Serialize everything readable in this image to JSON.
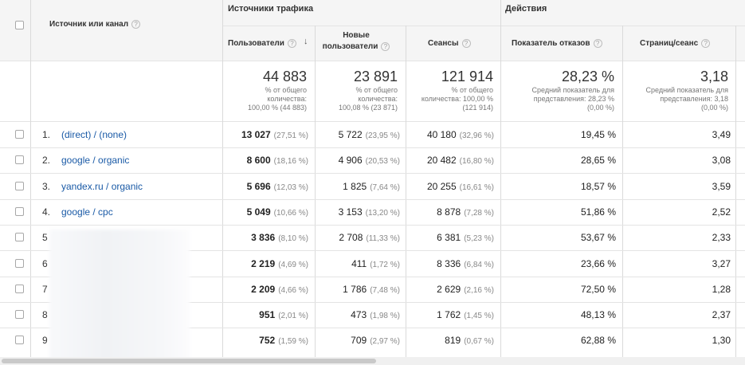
{
  "header": {
    "source_col": "Источник или канал",
    "group_traffic": "Источники трафика",
    "group_actions": "Действия",
    "help_glyph": "?",
    "sort_glyph": "↓",
    "columns": [
      {
        "label1": "Пользователи",
        "label2": ""
      },
      {
        "label1": "Новые",
        "label2": "пользователи"
      },
      {
        "label1": "Сеансы",
        "label2": ""
      },
      {
        "label1": "Показатель отказов",
        "label2": ""
      },
      {
        "label1": "Страниц/сеанс",
        "label2": ""
      }
    ]
  },
  "totals": [
    {
      "value": "44 883",
      "l1": "% от общего",
      "l2": "количества:",
      "l3": "100,00 % (44 883)"
    },
    {
      "value": "23 891",
      "l1": "% от общего",
      "l2": "количества:",
      "l3": "100,08 % (23 871)"
    },
    {
      "value": "121 914",
      "l1": "% от общего",
      "l2": "количества: 100,00 %",
      "l3": "(121 914)"
    },
    {
      "value": "28,23 %",
      "l1": "Средний показатель для",
      "l2": "представления: 28,23 %",
      "l3": "(0,00 %)"
    },
    {
      "value": "3,18",
      "l1": "Средний показатель для",
      "l2": "представления: 3,18",
      "l3": "(0,00 %)"
    }
  ],
  "rows": [
    {
      "num": "1.",
      "source": "(direct) / (none)",
      "users": "13 027",
      "users_pct": "(27,51 %)",
      "new": "5 722",
      "new_pct": "(23,95 %)",
      "sessions": "40 180",
      "sessions_pct": "(32,96 %)",
      "bounce": "19,45 %",
      "pages": "3,49"
    },
    {
      "num": "2.",
      "source": "google / organic",
      "users": "8 600",
      "users_pct": "(18,16 %)",
      "new": "4 906",
      "new_pct": "(20,53 %)",
      "sessions": "20 482",
      "sessions_pct": "(16,80 %)",
      "bounce": "28,65 %",
      "pages": "3,08"
    },
    {
      "num": "3.",
      "source": "yandex.ru / organic",
      "users": "5 696",
      "users_pct": "(12,03 %)",
      "new": "1 825",
      "new_pct": "(7,64 %)",
      "sessions": "20 255",
      "sessions_pct": "(16,61 %)",
      "bounce": "18,57 %",
      "pages": "3,59"
    },
    {
      "num": "4.",
      "source": "google / cpc",
      "users": "5 049",
      "users_pct": "(10,66 %)",
      "new": "3 153",
      "new_pct": "(13,20 %)",
      "sessions": "8 878",
      "sessions_pct": "(7,28 %)",
      "bounce": "51,86 %",
      "pages": "2,52"
    },
    {
      "num": "5",
      "source": "",
      "users": "3 836",
      "users_pct": "(8,10 %)",
      "new": "2 708",
      "new_pct": "(11,33 %)",
      "sessions": "6 381",
      "sessions_pct": "(5,23 %)",
      "bounce": "53,67 %",
      "pages": "2,33"
    },
    {
      "num": "6",
      "source": "",
      "users": "2 219",
      "users_pct": "(4,69 %)",
      "new": "411",
      "new_pct": "(1,72 %)",
      "sessions": "8 336",
      "sessions_pct": "(6,84 %)",
      "bounce": "23,66 %",
      "pages": "3,27"
    },
    {
      "num": "7",
      "source": "",
      "users": "2 209",
      "users_pct": "(4,66 %)",
      "new": "1 786",
      "new_pct": "(7,48 %)",
      "sessions": "2 629",
      "sessions_pct": "(2,16 %)",
      "bounce": "72,50 %",
      "pages": "1,28"
    },
    {
      "num": "8",
      "source": "",
      "users": "951",
      "users_pct": "(2,01 %)",
      "new": "473",
      "new_pct": "(1,98 %)",
      "sessions": "1 762",
      "sessions_pct": "(1,45 %)",
      "bounce": "48,13 %",
      "pages": "2,37"
    },
    {
      "num": "9",
      "source": "",
      "users": "752",
      "users_pct": "(1,59 %)",
      "new": "709",
      "new_pct": "(2,97 %)",
      "sessions": "819",
      "sessions_pct": "(0,67 %)",
      "bounce": "62,88 %",
      "pages": "1,30"
    }
  ]
}
